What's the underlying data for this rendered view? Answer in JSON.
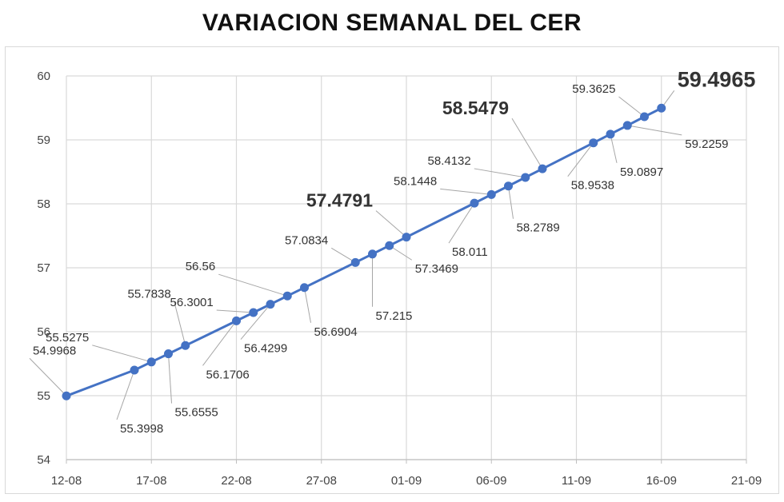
{
  "title": "VARIACION SEMANAL DEL CER",
  "chart_data": {
    "type": "line",
    "title": "VARIACION SEMANAL DEL CER",
    "xlabel": "",
    "ylabel": "",
    "x_ticks": [
      "12-08",
      "17-08",
      "22-08",
      "27-08",
      "01-09",
      "06-09",
      "11-09",
      "16-09",
      "21-09"
    ],
    "y_ticks": [
      54,
      55,
      56,
      57,
      58,
      59,
      60
    ],
    "ylim": [
      54,
      60
    ],
    "x_range_days": [
      0,
      40
    ],
    "grid": true,
    "legend": "none",
    "series": [
      {
        "color": "#4472c4",
        "points": [
          {
            "date": "12-08",
            "day": 0,
            "value": 54.9968,
            "label": "54.9968"
          },
          {
            "date": "16-08",
            "day": 4,
            "value": 55.3998,
            "label": "55.3998"
          },
          {
            "date": "17-08",
            "day": 5,
            "value": 55.5275,
            "label": "55.5275"
          },
          {
            "date": "18-08",
            "day": 6,
            "value": 55.6555,
            "label": "55.6555"
          },
          {
            "date": "19-08",
            "day": 7,
            "value": 55.7838,
            "label": "55.7838"
          },
          {
            "date": "22-08",
            "day": 10,
            "value": 56.1706,
            "label": "56.1706"
          },
          {
            "date": "23-08",
            "day": 11,
            "value": 56.3001,
            "label": "56.3001"
          },
          {
            "date": "24-08",
            "day": 12,
            "value": 56.4299,
            "label": "56.4299"
          },
          {
            "date": "25-08",
            "day": 13,
            "value": 56.56,
            "label": "56.56"
          },
          {
            "date": "26-08",
            "day": 14,
            "value": 56.6904,
            "label": "56.6904"
          },
          {
            "date": "29-08",
            "day": 17,
            "value": 57.0834,
            "label": "57.0834"
          },
          {
            "date": "30-08",
            "day": 18,
            "value": 57.215,
            "label": "57.215"
          },
          {
            "date": "31-08",
            "day": 19,
            "value": 57.3469,
            "label": "57.3469"
          },
          {
            "date": "01-09",
            "day": 20,
            "value": 57.4791,
            "label": "57.4791",
            "emphasis": "big"
          },
          {
            "date": "05-09",
            "day": 24,
            "value": 58.011,
            "label": "58.011"
          },
          {
            "date": "06-09",
            "day": 25,
            "value": 58.1448,
            "label": "58.1448"
          },
          {
            "date": "07-09",
            "day": 26,
            "value": 58.2789,
            "label": "58.2789"
          },
          {
            "date": "08-09",
            "day": 27,
            "value": 58.4132,
            "label": "58.4132"
          },
          {
            "date": "09-09",
            "day": 28,
            "value": 58.5479,
            "label": "58.5479",
            "emphasis": "big"
          },
          {
            "date": "12-09",
            "day": 31,
            "value": 58.9538,
            "label": "58.9538"
          },
          {
            "date": "13-09",
            "day": 32,
            "value": 59.0897,
            "label": "59.0897"
          },
          {
            "date": "14-09",
            "day": 33,
            "value": 59.2259,
            "label": "59.2259"
          },
          {
            "date": "15-09",
            "day": 34,
            "value": 59.3625,
            "label": "59.3625"
          },
          {
            "date": "16-09",
            "day": 35,
            "value": 59.4965,
            "label": "59.4965",
            "emphasis": "huge"
          }
        ]
      }
    ]
  }
}
